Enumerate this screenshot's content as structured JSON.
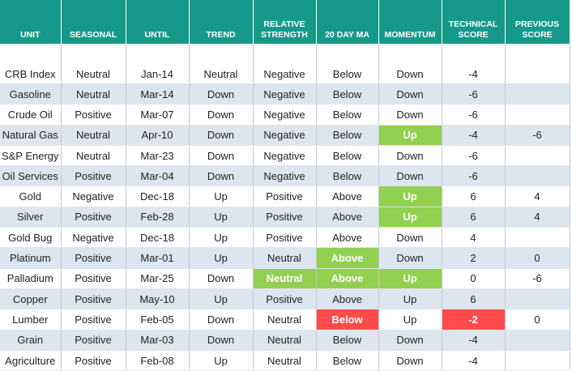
{
  "table": {
    "header": [
      "UNIT",
      "SEASONAL",
      "UNTIL",
      "TREND",
      "RELATIVE STRENGTH",
      "20 DAY MA",
      "MOMENTUM",
      "TECHNICAL SCORE",
      "PREVIOUS SCORE"
    ],
    "rows": [
      [
        "CRB Index",
        "Neutral",
        "Jan-14",
        "Neutral",
        "Negative",
        "Below",
        "Down",
        -4,
        null
      ],
      [
        "Gasoline",
        "Neutral",
        "Mar-14",
        "Down",
        "Negative",
        "Below",
        "Down",
        -6,
        null
      ],
      [
        "Crude Oil",
        "Positive",
        "Mar-07",
        "Down",
        "Negative",
        "Below",
        "Down",
        -6,
        null
      ],
      [
        "Natural Gas",
        "Neutral",
        "Apr-10",
        "Down",
        "Negative",
        "Below",
        "Up",
        -4,
        -6
      ],
      [
        "S&P Energy",
        "Neutral",
        "Mar-23",
        "Down",
        "Negative",
        "Below",
        "Down",
        -6,
        null
      ],
      [
        "Oil Services",
        "Positive",
        "Mar-04",
        "Down",
        "Negative",
        "Below",
        "Down",
        -6,
        null
      ],
      [
        "Gold",
        "Negative",
        "Dec-18",
        "Up",
        "Positive",
        "Above",
        "Up",
        6,
        4
      ],
      [
        "Silver",
        "Positive",
        "Feb-28",
        "Up",
        "Positive",
        "Above",
        "Up",
        6,
        4
      ],
      [
        "Gold Bug",
        "Negative",
        "Dec-18",
        "Up",
        "Positive",
        "Above",
        "Down",
        4,
        null
      ],
      [
        "Platinum",
        "Positive",
        "Mar-01",
        "Up",
        "Neutral",
        "Above",
        "Down",
        2,
        0
      ],
      [
        "Palladium",
        "Positive",
        "Mar-25",
        "Down",
        "Neutral",
        "Above",
        "Up",
        0,
        -6
      ],
      [
        "Copper",
        "Positive",
        "May-10",
        "Up",
        "Positive",
        "Above",
        "Up",
        6,
        null
      ],
      [
        "Lumber",
        "Positive",
        "Feb-05",
        "Down",
        "Neutral",
        "Below",
        "Up",
        -2,
        0
      ],
      [
        "Grain",
        "Positive",
        "Mar-03",
        "Down",
        "Neutral",
        "Below",
        "Down",
        -4,
        null
      ],
      [
        "Agriculture",
        "Positive",
        "Feb-08",
        "Up",
        "Neutral",
        "Below",
        "Down",
        -4,
        null
      ]
    ]
  }
}
